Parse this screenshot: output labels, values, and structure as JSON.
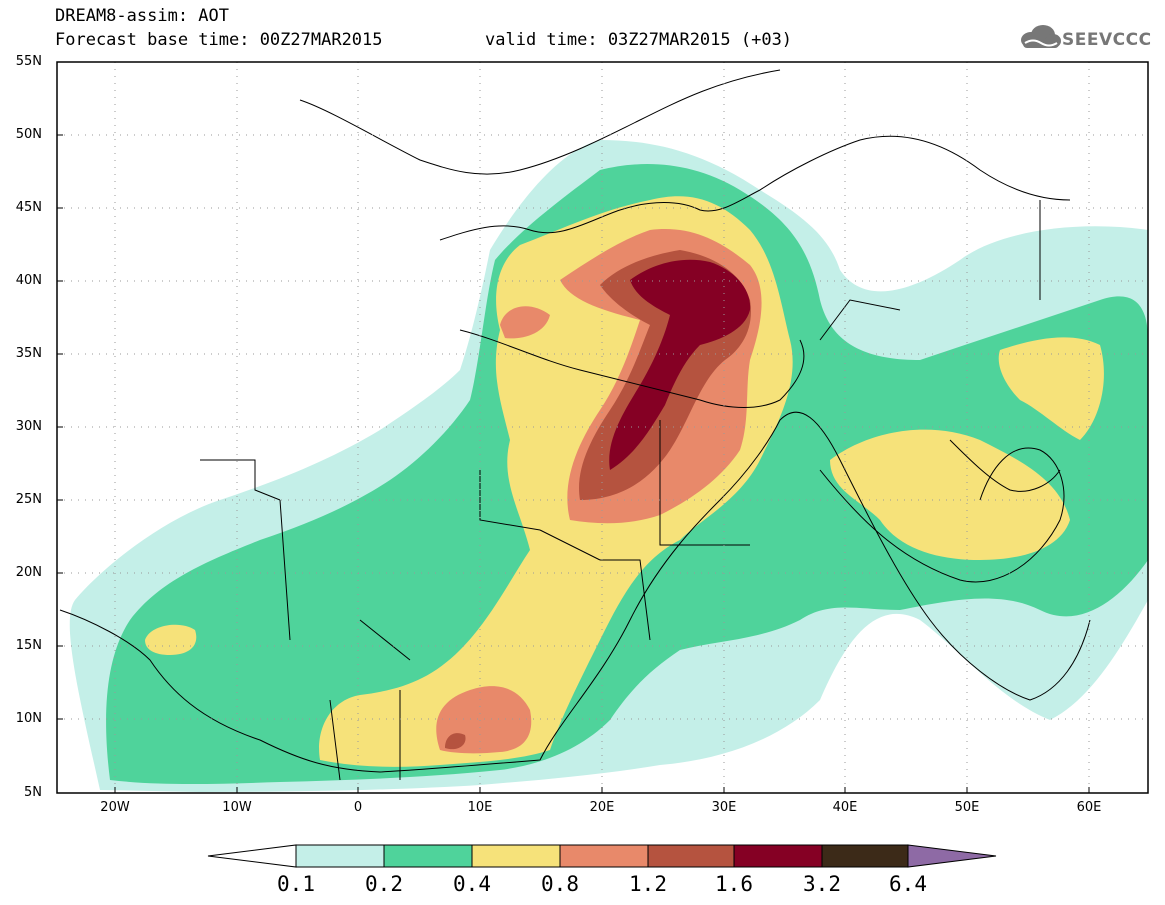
{
  "header": {
    "title": "DREAM8-assim: AOT",
    "base_time": "Forecast base time: 00Z27MAR2015",
    "valid_time": "valid time: 03Z27MAR2015 (+03)",
    "logo_text": "SEEVCCC"
  },
  "map": {
    "lat_labels": [
      "55N",
      "50N",
      "45N",
      "40N",
      "35N",
      "30N",
      "25N",
      "20N",
      "15N",
      "10N",
      "5N"
    ],
    "lon_labels": [
      "20W",
      "10W",
      "0",
      "10E",
      "20E",
      "30E",
      "40E",
      "50E",
      "60E"
    ]
  },
  "colorbar": {
    "labels": [
      "0.1",
      "0.2",
      "0.4",
      "0.8",
      "1.2",
      "1.6",
      "3.2",
      "6.4"
    ],
    "colors": [
      "#c4efe8",
      "#4fd39b",
      "#f6e27a",
      "#e8896a",
      "#b5533f",
      "#850024",
      "#3c2a18",
      "#8e6aa5"
    ]
  }
}
